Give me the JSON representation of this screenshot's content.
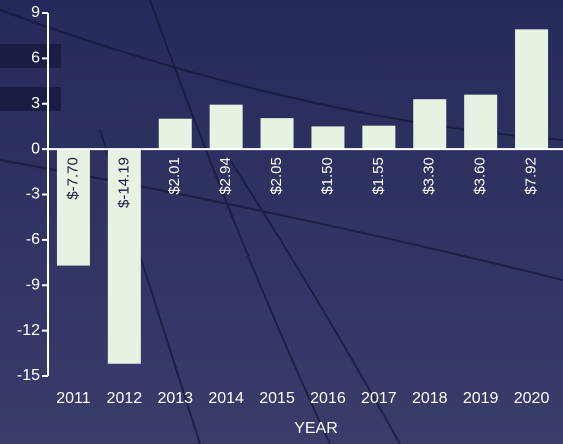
{
  "chart_data": {
    "type": "bar",
    "x_label": "YEAR",
    "categories": [
      "2011",
      "2012",
      "2013",
      "2014",
      "2015",
      "2016",
      "2017",
      "2018",
      "2019",
      "2020"
    ],
    "values": [
      -7.7,
      -14.19,
      2.01,
      2.94,
      2.05,
      1.5,
      1.55,
      3.3,
      3.6,
      7.92
    ],
    "value_labels": [
      "$-7.70",
      "$-14.19",
      "$2.01",
      "$2.94",
      "$2.05",
      "$1.50",
      "$1.55",
      "$3.30",
      "$3.60",
      "$7.92"
    ],
    "color": "#e6f2e2",
    "ylim": [
      -15,
      9
    ],
    "yticks": [
      -15,
      -12,
      -9,
      -6,
      -3,
      0,
      3,
      6,
      9
    ]
  }
}
